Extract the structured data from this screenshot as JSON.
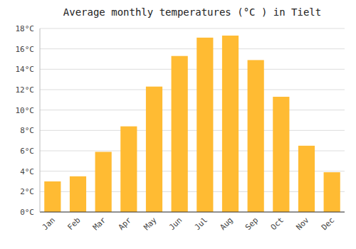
{
  "chart_data": {
    "type": "bar",
    "title": "Average monthly temperatures (°C ) in Tielt",
    "categories": [
      "Jan",
      "Feb",
      "Mar",
      "Apr",
      "May",
      "Jun",
      "Jul",
      "Aug",
      "Sep",
      "Oct",
      "Nov",
      "Dec"
    ],
    "values": [
      3.0,
      3.5,
      5.9,
      8.4,
      12.3,
      15.3,
      17.1,
      17.3,
      14.9,
      11.3,
      6.5,
      3.9
    ],
    "color": "#FFBB33",
    "ylim": [
      0,
      18
    ],
    "yticks": [
      {
        "value": 0,
        "label": "0°C"
      },
      {
        "value": 2,
        "label": "2°C"
      },
      {
        "value": 4,
        "label": "4°C"
      },
      {
        "value": 6,
        "label": "6°C"
      },
      {
        "value": 8,
        "label": "8°C"
      },
      {
        "value": 10,
        "label": "10°C"
      },
      {
        "value": 12,
        "label": "12°C"
      },
      {
        "value": 14,
        "label": "14°C"
      },
      {
        "value": 16,
        "label": "16°C"
      },
      {
        "value": 18,
        "label": "18°C"
      }
    ],
    "grid": true
  }
}
